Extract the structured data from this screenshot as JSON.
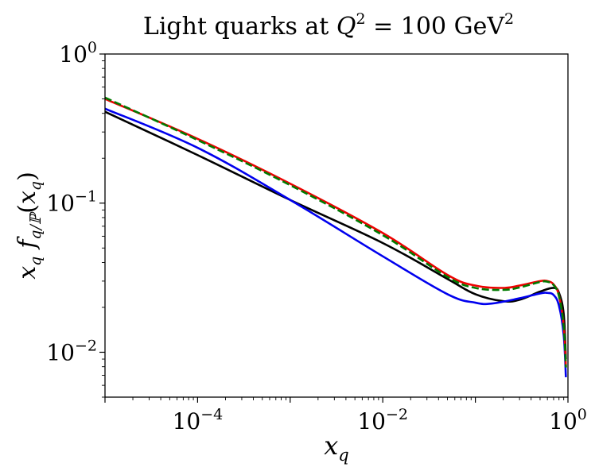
{
  "chart_data": {
    "type": "line",
    "title": "Light quarks at Q² = 100 GeV²",
    "title_parts": {
      "prefix": "Light quarks at ",
      "var": "Q",
      "sup": "2",
      "mid": " = 100 GeV",
      "sup2": "2"
    },
    "xlabel": "x_q",
    "xlabel_parts": {
      "base": "x",
      "sub": "q"
    },
    "ylabel": "x_q f_{q/P}(x_q)",
    "ylabel_parts": {
      "x": "x",
      "xsub": "q",
      "f": "f",
      "fsub": "q/ℙ",
      "open": "(",
      "arg": "x",
      "argsub": "q",
      "close": ")"
    },
    "x_scale": "log",
    "y_scale": "log",
    "xlim": [
      1e-05,
      1.0
    ],
    "ylim": [
      0.005,
      1.0
    ],
    "x_ticks": [
      {
        "value": 0.0001,
        "base": "10",
        "exp": "−4"
      },
      {
        "value": 0.01,
        "base": "10",
        "exp": "−2"
      },
      {
        "value": 1,
        "base": "10",
        "exp": "0"
      }
    ],
    "y_ticks": [
      {
        "value": 0.01,
        "base": "10",
        "exp": "−2"
      },
      {
        "value": 0.1,
        "base": "10",
        "exp": "−1"
      },
      {
        "value": 1,
        "base": "10",
        "exp": "0"
      }
    ],
    "legend": "none",
    "grid": false,
    "series": [
      {
        "name": "black",
        "color": "#000000",
        "dash": "solid",
        "x": [
          1e-05,
          0.0001,
          0.001,
          0.01,
          0.05,
          0.1,
          0.2,
          0.3,
          0.5,
          0.7,
          0.8,
          0.9,
          0.95
        ],
        "y": [
          0.41,
          0.21,
          0.105,
          0.054,
          0.031,
          0.0245,
          0.022,
          0.0225,
          0.0255,
          0.027,
          0.025,
          0.018,
          0.009
        ]
      },
      {
        "name": "blue",
        "color": "#0000ee",
        "dash": "solid",
        "x": [
          1e-05,
          0.0001,
          0.001,
          0.01,
          0.05,
          0.1,
          0.15,
          0.3,
          0.5,
          0.6,
          0.7,
          0.8,
          0.9,
          0.95
        ],
        "y": [
          0.43,
          0.235,
          0.105,
          0.044,
          0.0245,
          0.0215,
          0.0212,
          0.023,
          0.0248,
          0.025,
          0.0242,
          0.0205,
          0.013,
          0.0068
        ]
      },
      {
        "name": "red",
        "color": "#ee0000",
        "dash": "solid",
        "x": [
          1e-05,
          0.0001,
          0.001,
          0.01,
          0.05,
          0.1,
          0.2,
          0.3,
          0.5,
          0.6,
          0.7,
          0.8,
          0.9,
          0.95
        ],
        "y": [
          0.5,
          0.27,
          0.135,
          0.063,
          0.033,
          0.028,
          0.027,
          0.028,
          0.03,
          0.03,
          0.0285,
          0.024,
          0.015,
          0.008
        ]
      },
      {
        "name": "green-dashed",
        "color": "#007a00",
        "dash": "dashed",
        "x": [
          1e-05,
          0.0001,
          0.001,
          0.01,
          0.05,
          0.1,
          0.2,
          0.3,
          0.5,
          0.6,
          0.7,
          0.8,
          0.9,
          0.95
        ],
        "y": [
          0.51,
          0.265,
          0.132,
          0.061,
          0.032,
          0.027,
          0.0262,
          0.0272,
          0.0296,
          0.0297,
          0.0282,
          0.0238,
          0.0148,
          0.0079
        ]
      }
    ]
  }
}
